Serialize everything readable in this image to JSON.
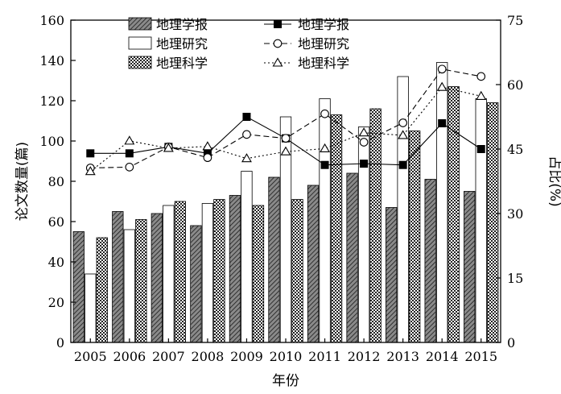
{
  "chart_data": {
    "type": "bar",
    "categories": [
      "2005",
      "2006",
      "2007",
      "2008",
      "2009",
      "2010",
      "2011",
      "2012",
      "2013",
      "2014",
      "2015"
    ],
    "xlabel": "年份",
    "ylabel": "论文数量(篇)",
    "ylabel2": "占比(%)",
    "ylim": [
      0,
      160
    ],
    "yticks": [
      0,
      20,
      40,
      60,
      80,
      100,
      120,
      140,
      160
    ],
    "ylim2": [
      0,
      75
    ],
    "yticks2": [
      0,
      15,
      30,
      45,
      60,
      75
    ],
    "bar_series": [
      {
        "name": "地理学报",
        "pattern": "hatch",
        "values": [
          55,
          65,
          64,
          58,
          73,
          82,
          78,
          84,
          67,
          81,
          75
        ]
      },
      {
        "name": "地理研究",
        "pattern": "white",
        "values": [
          34,
          56,
          68,
          69,
          85,
          112,
          121,
          107,
          132,
          139,
          121
        ]
      },
      {
        "name": "地理科学",
        "pattern": "crosshatch",
        "values": [
          52,
          61,
          70,
          71,
          68,
          71,
          113,
          116,
          105,
          127,
          119
        ]
      }
    ],
    "line_series": [
      {
        "name": "地理学报",
        "marker": "filled-square",
        "line": "solid",
        "values": [
          44,
          44,
          45.5,
          44,
          52.5,
          47.5,
          41.3,
          41.6,
          41.3,
          51,
          45
        ]
      },
      {
        "name": "地理研究",
        "marker": "open-circle",
        "line": "dashed",
        "values": [
          40.6,
          40.8,
          45.5,
          43,
          48.4,
          47.5,
          53.2,
          46.6,
          51.1,
          63.6,
          61.9
        ]
      },
      {
        "name": "地理科学",
        "marker": "open-triangle",
        "line": "dotted",
        "values": [
          39.8,
          46.9,
          45.2,
          45.6,
          42.8,
          44.4,
          45.1,
          48.8,
          48.2,
          59.4,
          57.3
        ]
      }
    ],
    "grid": false,
    "legend_position": "top-left"
  }
}
